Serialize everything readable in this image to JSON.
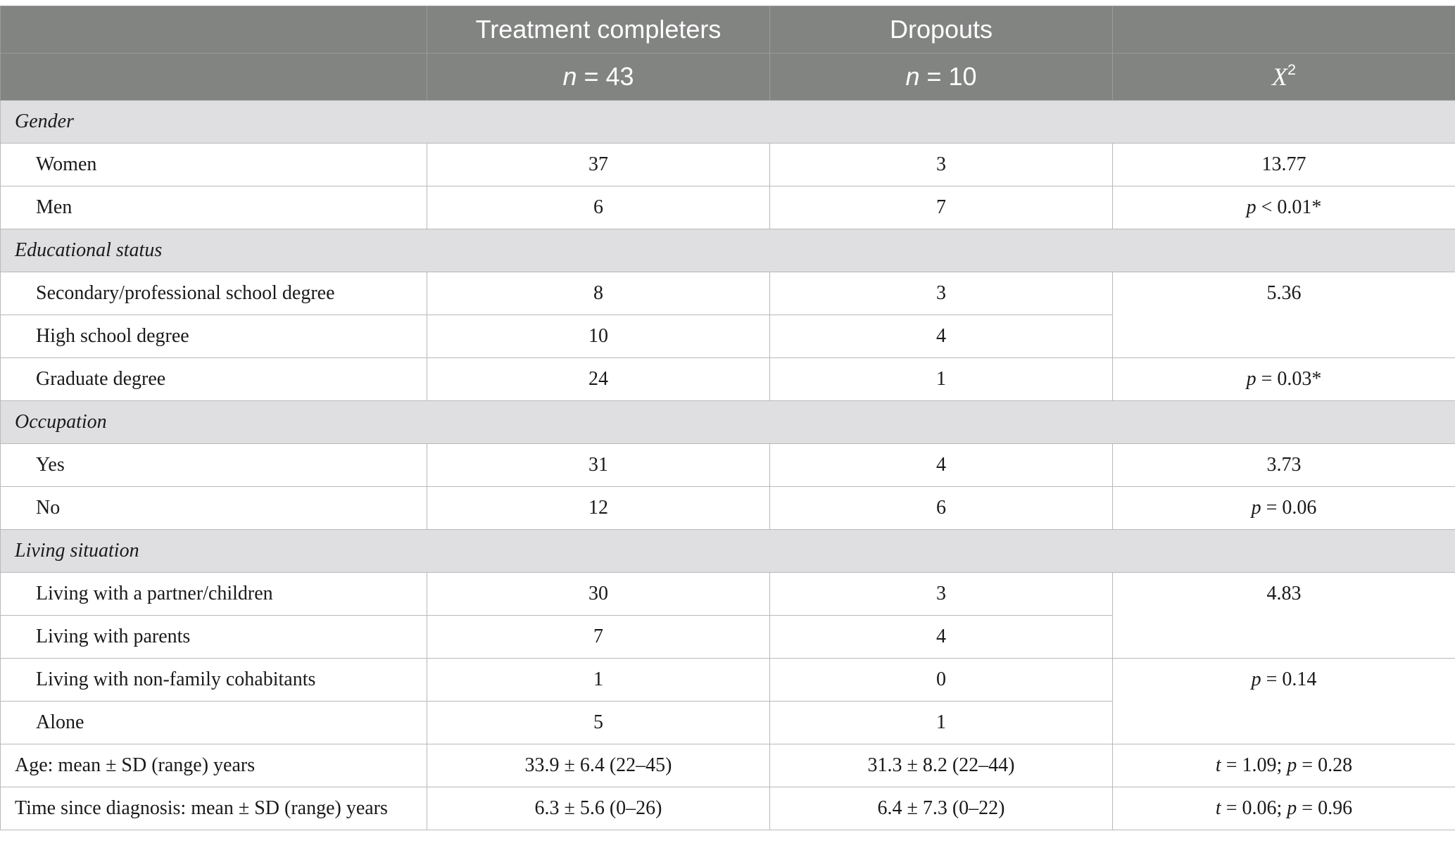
{
  "header": {
    "col_completers": "Treatment completers",
    "col_dropouts": "Dropouts",
    "n_completers": "= 43",
    "n_dropouts": "= 10",
    "n_symbol": "n",
    "stat_symbol": "X",
    "stat_sup": "2"
  },
  "gender": {
    "label": "Gender",
    "rows": [
      {
        "label": "Women",
        "completers": "37",
        "dropouts": "3"
      },
      {
        "label": "Men",
        "completers": "6",
        "dropouts": "7"
      }
    ],
    "chi": "13.77",
    "p_sym": "p",
    "p_val": "< 0.01*"
  },
  "education": {
    "label": "Educational status",
    "rows": [
      {
        "label": "Secondary/professional school degree",
        "completers": "8",
        "dropouts": "3"
      },
      {
        "label": "High school degree",
        "completers": "10",
        "dropouts": "4"
      },
      {
        "label": "Graduate degree",
        "completers": "24",
        "dropouts": "1"
      }
    ],
    "chi": "5.36",
    "p_sym": "p",
    "p_val": "= 0.03*"
  },
  "occupation": {
    "label": "Occupation",
    "rows": [
      {
        "label": "Yes",
        "completers": "31",
        "dropouts": "4"
      },
      {
        "label": "No",
        "completers": "12",
        "dropouts": "6"
      }
    ],
    "chi": "3.73",
    "p_sym": "p",
    "p_val": "= 0.06"
  },
  "living": {
    "label": "Living situation",
    "rows": [
      {
        "label": "Living with a partner/children",
        "completers": "30",
        "dropouts": "3"
      },
      {
        "label": "Living with parents",
        "completers": "7",
        "dropouts": "4"
      },
      {
        "label": "Living with non-family cohabitants",
        "completers": "1",
        "dropouts": "0"
      },
      {
        "label": "Alone",
        "completers": "5",
        "dropouts": "1"
      }
    ],
    "chi": "4.83",
    "p_sym": "p",
    "p_val": "= 0.14"
  },
  "age": {
    "label": "Age: mean ± SD (range) years",
    "completers": "33.9 ± 6.4 (22–45)",
    "dropouts": "31.3 ± 8.2 (22–44)",
    "t_sym": "t",
    "t_val": "= 1.09; ",
    "p_sym": "p",
    "p_val": "= 0.28"
  },
  "time": {
    "label": "Time since diagnosis: mean ± SD (range) years",
    "completers": "6.3 ± 5.6 (0–26)",
    "dropouts": "6.4 ± 7.3 (0–22)",
    "t_sym": "t",
    "t_val": "= 0.06; ",
    "p_sym": "p",
    "p_val": "= 0.96"
  }
}
